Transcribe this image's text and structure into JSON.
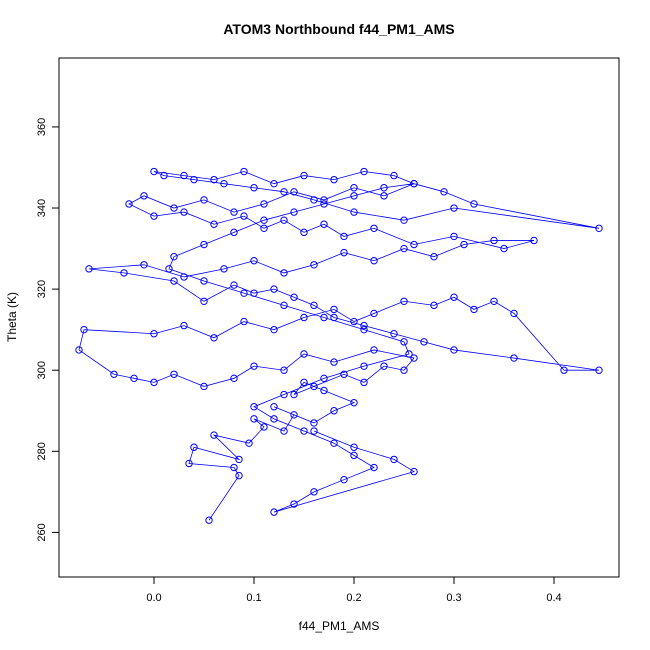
{
  "chart_data": {
    "type": "scatter",
    "title": "ATOM3 Northbound f44_PM1_AMS",
    "xlabel": "f44_PM1_AMS",
    "ylabel": "Theta (K)",
    "xlim": [
      -0.095,
      0.465
    ],
    "ylim": [
      249,
      377
    ],
    "x_ticks": [
      0.0,
      0.1,
      0.2,
      0.3,
      0.4
    ],
    "x_tick_labels": [
      "0.0",
      "0.1",
      "0.2",
      "0.3",
      "0.4"
    ],
    "y_ticks": [
      260,
      280,
      300,
      320,
      340,
      360
    ],
    "y_tick_labels": [
      "260",
      "280",
      "300",
      "320",
      "340",
      "360"
    ],
    "grid": false,
    "legend": "none",
    "series_color": "#0000ff",
    "marker": "open-circle",
    "connected": true,
    "series": [
      {
        "x": [
          0.055,
          0.085,
          0.08,
          0.035,
          0.04,
          0.085,
          0.06,
          0.095,
          0.11,
          0.1,
          0.13,
          0.14,
          0.12,
          0.16,
          0.18,
          0.2,
          0.17,
          0.15,
          0.14,
          0.16,
          0.19,
          0.21,
          0.23,
          0.25,
          0.26,
          0.22,
          0.18,
          0.15,
          0.13,
          0.1,
          0.08,
          0.05,
          0.02,
          0.0,
          -0.02,
          -0.04,
          -0.075,
          -0.07,
          0.0,
          0.03,
          0.06,
          0.09,
          0.12,
          0.15,
          0.18,
          0.2,
          0.22,
          0.25,
          0.28,
          0.3,
          0.32,
          0.34,
          0.36,
          0.41,
          0.445,
          0.36,
          0.3,
          0.27,
          0.24,
          0.21,
          0.18,
          0.16,
          0.14,
          0.12,
          0.1,
          0.08,
          0.05,
          0.02,
          -0.03,
          -0.065,
          -0.01,
          0.03,
          0.07,
          0.1,
          0.13,
          0.16,
          0.19,
          0.22,
          0.25,
          0.28,
          0.31,
          0.34,
          0.38,
          0.35,
          0.3,
          0.26,
          0.22,
          0.19,
          0.17,
          0.15,
          0.13,
          0.11,
          0.09,
          0.06,
          0.03,
          0.0,
          -0.025,
          -0.01,
          0.02,
          0.05,
          0.08,
          0.11,
          0.14,
          0.17,
          0.2,
          0.23,
          0.26,
          0.29,
          0.32,
          0.445,
          0.3,
          0.25,
          0.2,
          0.16,
          0.13,
          0.1,
          0.07,
          0.04,
          0.01,
          0.0,
          0.03,
          0.06,
          0.09,
          0.12,
          0.15,
          0.18,
          0.21,
          0.24,
          0.26,
          0.23,
          0.2,
          0.17,
          0.14,
          0.11,
          0.08,
          0.05,
          0.02,
          0.015,
          0.05,
          0.09,
          0.13,
          0.17,
          0.21,
          0.25,
          0.255,
          0.21,
          0.17,
          0.13,
          0.1,
          0.12,
          0.15,
          0.18,
          0.2,
          0.22,
          0.19,
          0.16,
          0.14,
          0.12,
          0.26,
          0.24,
          0.2,
          0.16
        ],
        "y": [
          263,
          274,
          276,
          277,
          281,
          278,
          284,
          282,
          286,
          288,
          285,
          289,
          291,
          287,
          290,
          292,
          295,
          297,
          294,
          296,
          299,
          297,
          301,
          300,
          303,
          305,
          302,
          304,
          300,
          301,
          298,
          296,
          299,
          297,
          298,
          299,
          305,
          310,
          309,
          311,
          308,
          312,
          310,
          313,
          315,
          312,
          314,
          317,
          316,
          318,
          315,
          317,
          314,
          300,
          300,
          303,
          305,
          307,
          309,
          311,
          313,
          316,
          318,
          320,
          319,
          321,
          317,
          322,
          324,
          325,
          326,
          323,
          325,
          327,
          324,
          326,
          329,
          327,
          330,
          328,
          331,
          332,
          332,
          330,
          333,
          331,
          335,
          333,
          336,
          334,
          337,
          335,
          338,
          336,
          339,
          338,
          341,
          343,
          340,
          342,
          339,
          341,
          344,
          342,
          345,
          343,
          346,
          344,
          341,
          335,
          340,
          337,
          339,
          342,
          344,
          345,
          346,
          347,
          348,
          349,
          348,
          347,
          349,
          346,
          348,
          347,
          349,
          348,
          346,
          345,
          343,
          341,
          339,
          337,
          334,
          331,
          328,
          325,
          322,
          319,
          316,
          313,
          310,
          307,
          304,
          301,
          298,
          294,
          291,
          288,
          285,
          282,
          279,
          276,
          273,
          270,
          267,
          265,
          275,
          278,
          281,
          285
        ]
      }
    ]
  }
}
